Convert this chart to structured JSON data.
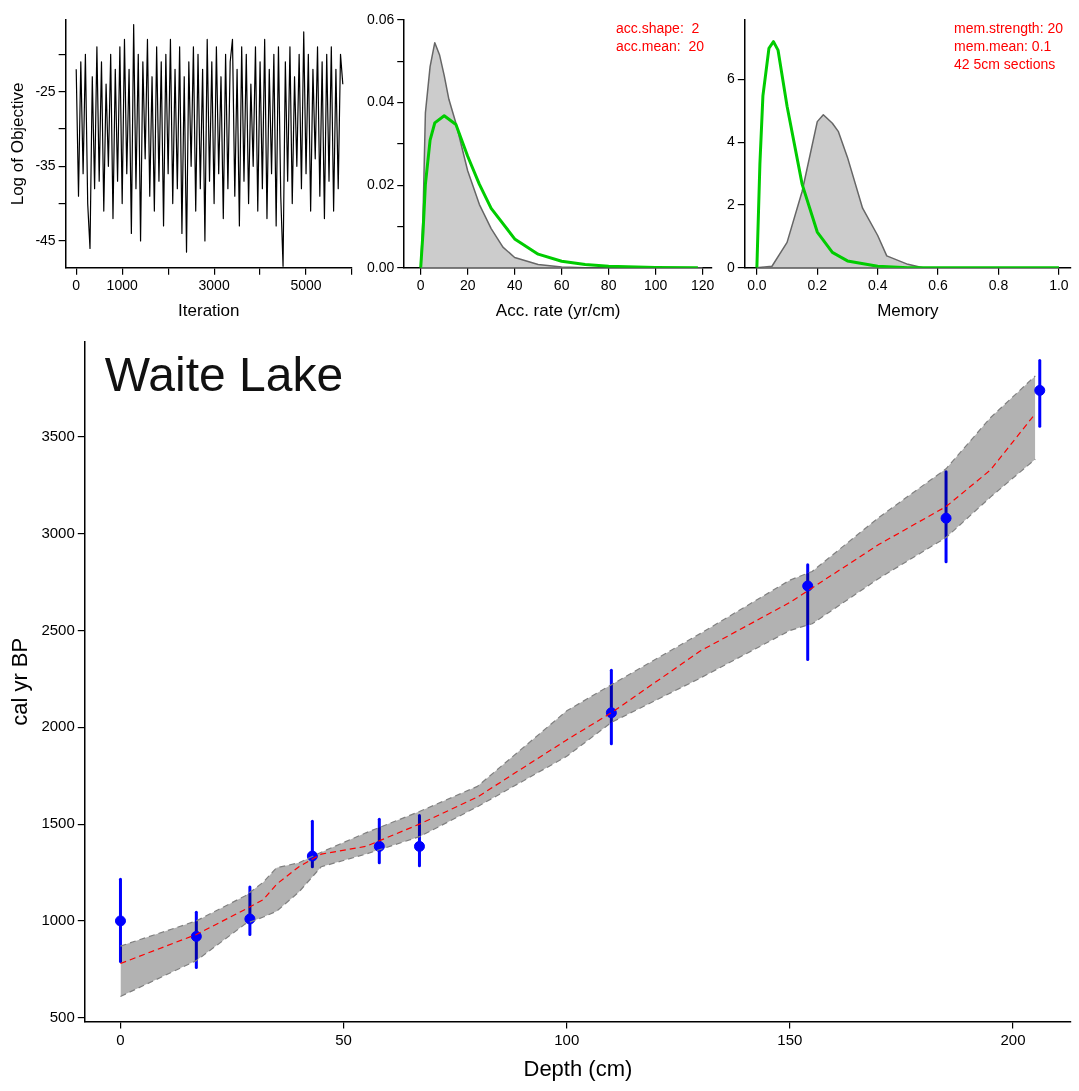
{
  "chart_data": [
    {
      "type": "line",
      "xlabel": "Iteration",
      "ylabel": "Log of Objective",
      "xlim": [
        -230,
        6000
      ],
      "ylim": [
        -48.6,
        -15.4
      ],
      "xticks": [
        0,
        1000,
        {
          "value": 2000,
          "label": null
        },
        3000,
        {
          "value": 4000,
          "label": null
        },
        5000,
        {
          "value": 6000,
          "label": null
        }
      ],
      "yticks": [
        {
          "value": -20,
          "label": null
        },
        -25,
        {
          "value": -30,
          "label": null
        },
        -35,
        {
          "value": -40,
          "label": null
        },
        -45
      ],
      "series": [
        {
          "color": "#000000",
          "x": [
            0,
            50,
            100,
            150,
            200,
            250,
            300,
            350,
            400,
            450,
            500,
            550,
            600,
            650,
            700,
            750,
            800,
            850,
            900,
            950,
            1000,
            1050,
            1100,
            1150,
            1200,
            1250,
            1300,
            1350,
            1400,
            1450,
            1500,
            1550,
            1600,
            1650,
            1700,
            1750,
            1800,
            1850,
            1900,
            1950,
            2000,
            2050,
            2100,
            2150,
            2200,
            2250,
            2300,
            2350,
            2400,
            2450,
            2500,
            2550,
            2600,
            2650,
            2700,
            2750,
            2800,
            2850,
            2900,
            2950,
            3000,
            3050,
            3100,
            3150,
            3200,
            3250,
            3300,
            3350,
            3400,
            3450,
            3500,
            3550,
            3600,
            3650,
            3700,
            3750,
            3800,
            3850,
            3900,
            3950,
            4000,
            4050,
            4100,
            4150,
            4200,
            4250,
            4300,
            4350,
            4400,
            4450,
            4500,
            4550,
            4600,
            4650,
            4700,
            4750,
            4800,
            4850,
            4900,
            4950,
            5000,
            5050,
            5100,
            5150,
            5200,
            5250,
            5300,
            5350,
            5400,
            5450,
            5500,
            5550,
            5600,
            5650,
            5700,
            5750,
            5800
          ],
          "values": [
            -22,
            -39,
            -21,
            -36,
            -20,
            -40,
            -46,
            -23,
            -38,
            -19,
            -37,
            -21,
            -41,
            -24,
            -35,
            -20,
            -42,
            -22,
            -37,
            -19,
            -40,
            -18,
            -36,
            -22,
            -44,
            -16,
            -38,
            -20,
            -45,
            -21,
            -34,
            -18,
            -39,
            -23,
            -41,
            -19,
            -37,
            -21,
            -43,
            -20,
            -36,
            -18,
            -40,
            -22,
            -38,
            -19,
            -44,
            -23,
            -46.5,
            -21,
            -35,
            -19,
            -41,
            -20,
            -38,
            -22,
            -45,
            -18,
            -37,
            -21,
            -40,
            -19,
            -36,
            -23,
            -42,
            -20,
            -38,
            -21,
            -18,
            -39,
            -22,
            -43,
            -19,
            -37,
            -20,
            -40,
            -24,
            -35,
            -19,
            -41,
            -21,
            -38,
            -18,
            -42,
            -22,
            -36,
            -20,
            -43,
            -19,
            -39,
            -48.4,
            -21,
            -37,
            -19,
            -40,
            -23,
            -35,
            -20,
            -38,
            -17,
            -36,
            -20,
            -41,
            -22,
            -34,
            -19,
            -39,
            -21,
            -42,
            -20,
            -37,
            -19,
            -41,
            -22,
            -38,
            -20,
            -24
          ]
        }
      ]
    },
    {
      "type": "area",
      "xlabel": "Acc. rate (yr/cm)",
      "xlim": [
        -7,
        124
      ],
      "ylim": [
        0,
        0.06
      ],
      "xticks": [
        0,
        20,
        40,
        60,
        80,
        100,
        120
      ],
      "yticks": [
        {
          "value": 0,
          "label": "0.00"
        },
        {
          "value": 0.01,
          "label": null
        },
        0.02,
        {
          "value": 0.03,
          "label": null
        },
        0.04,
        {
          "value": 0.05,
          "label": null
        },
        0.06
      ],
      "annotations": [
        "acc.shape:  2",
        "acc.mean:  20"
      ],
      "series": [
        {
          "color": "#cccccc",
          "x": [
            0,
            1,
            2,
            4,
            6,
            8,
            10,
            12,
            15,
            20,
            25,
            30,
            35,
            40,
            50,
            60,
            70,
            120
          ],
          "values": [
            0,
            0.0128,
            0.0375,
            0.0487,
            0.0545,
            0.0516,
            0.0466,
            0.0408,
            0.035,
            0.0235,
            0.0153,
            0.0095,
            0.005,
            0.0025,
            0.0008,
            0.0002,
            0,
            0
          ]
        },
        {
          "type": "line",
          "color": "#00cc00",
          "x": [
            0,
            1,
            2,
            4,
            6,
            10,
            15,
            20,
            25,
            30,
            40,
            50,
            60,
            70,
            80,
            100,
            118
          ],
          "values": [
            0,
            0.0087,
            0.0202,
            0.0309,
            0.0351,
            0.0368,
            0.0347,
            0.027,
            0.0202,
            0.0144,
            0.007,
            0.0033,
            0.0016,
            0.0008,
            0.0004,
            0.0001,
            0
          ]
        }
      ]
    },
    {
      "type": "area",
      "xlabel": "Memory",
      "xlim": [
        -0.04,
        1.04
      ],
      "ylim": [
        0,
        7.9
      ],
      "xticks": [
        {
          "value": 0,
          "label": "0.0"
        },
        0.2,
        0.4,
        0.6,
        0.8,
        {
          "value": 1,
          "label": "1.0"
        }
      ],
      "yticks": [
        0,
        2,
        4,
        6
      ],
      "annotations": [
        "mem.strength: 20",
        "mem.mean: 0.1",
        "42 5cm sections"
      ],
      "series": [
        {
          "color": "#cccccc",
          "x": [
            0,
            0.05,
            0.1,
            0.15,
            0.2,
            0.22,
            0.25,
            0.27,
            0.3,
            0.35,
            0.4,
            0.43,
            0.5,
            0.55,
            1
          ],
          "values": [
            0,
            0.05,
            0.81,
            2.44,
            4.66,
            4.88,
            4.61,
            4.34,
            3.52,
            1.9,
            1.03,
            0.38,
            0.11,
            0,
            0
          ]
        },
        {
          "type": "line",
          "color": "#00cc00",
          "x": [
            0,
            0.01,
            0.02,
            0.04,
            0.055,
            0.07,
            0.1,
            0.15,
            0.2,
            0.25,
            0.3,
            0.4,
            0.5,
            1
          ],
          "values": [
            0,
            3.3,
            5.48,
            7,
            7.21,
            6.94,
            5.15,
            2.66,
            1.14,
            0.49,
            0.22,
            0.05,
            0,
            0
          ]
        }
      ]
    },
    {
      "type": "line",
      "title": "Waite Lake",
      "xlabel": "Depth (cm)",
      "ylabel": "cal yr BP",
      "xlim": [
        -8,
        213
      ],
      "ylim": [
        480,
        3990
      ],
      "xticks": [
        0,
        50,
        100,
        150,
        200
      ],
      "yticks": [
        500,
        1000,
        1500,
        2000,
        2500,
        3000,
        3500
      ],
      "series": [
        {
          "type": "line",
          "color": "#808080",
          "line_style": "dashed",
          "x": [
            0,
            17,
            28,
            32,
            35,
            40,
            45,
            55,
            67,
            80,
            100,
            110,
            130,
            150,
            155,
            170,
            185,
            195,
            205
          ],
          "values": [
            610,
            795,
            985,
            1020,
            1050,
            1150,
            1280,
            1345,
            1435,
            1590,
            1850,
            2025,
            2255,
            2500,
            2535,
            2770,
            2980,
            3190,
            3385
          ]
        },
        {
          "type": "line",
          "color": "#808080",
          "line_style": "dashed",
          "x": [
            0,
            17,
            28,
            32,
            35,
            40,
            45,
            55,
            67,
            80,
            100,
            110,
            130,
            150,
            155,
            170,
            185,
            195,
            205
          ],
          "values": [
            870,
            1000,
            1130,
            1200,
            1275,
            1300,
            1355,
            1455,
            1565,
            1695,
            2085,
            2220,
            2485,
            2760,
            2805,
            3085,
            3335,
            3600,
            3815
          ]
        },
        {
          "color": "#ff0000",
          "line_style": "dashed",
          "x": [
            0,
            17,
            28,
            32,
            35,
            40,
            45,
            55,
            67,
            80,
            100,
            110,
            130,
            150,
            155,
            170,
            185,
            195,
            205
          ],
          "values": [
            780,
            930,
            1060,
            1110,
            1190,
            1280,
            1345,
            1385,
            1500,
            1640,
            1935,
            2075,
            2395,
            2645,
            2720,
            2945,
            3140,
            3330,
            3620
          ],
          "lower": [
            610,
            795,
            985,
            1020,
            1050,
            1150,
            1280,
            1345,
            1435,
            1590,
            1850,
            2025,
            2255,
            2500,
            2535,
            2770,
            2980,
            3190,
            3385
          ],
          "upper": [
            870,
            1000,
            1130,
            1200,
            1275,
            1300,
            1355,
            1455,
            1565,
            1695,
            2085,
            2220,
            2485,
            2760,
            2805,
            3085,
            3335,
            3600,
            3815
          ]
        },
        {
          "type": "scatter",
          "color": "#0000ff",
          "marker": "circle",
          "x": [
            0,
            17,
            29,
            43,
            58,
            67,
            110,
            154,
            185,
            206
          ],
          "values": [
            1000,
            920,
            1010,
            1335,
            1385,
            1385,
            2075,
            2730,
            3080,
            3740
          ],
          "errors": [
            [
              790,
              1215
            ],
            [
              760,
              1045
            ],
            [
              930,
              1175
            ],
            [
              1280,
              1515
            ],
            [
              1300,
              1525
            ],
            [
              1285,
              1545
            ],
            [
              1915,
              2295
            ],
            [
              2350,
              2840
            ],
            [
              2855,
              3320
            ],
            [
              3555,
              3895
            ]
          ]
        }
      ]
    }
  ]
}
